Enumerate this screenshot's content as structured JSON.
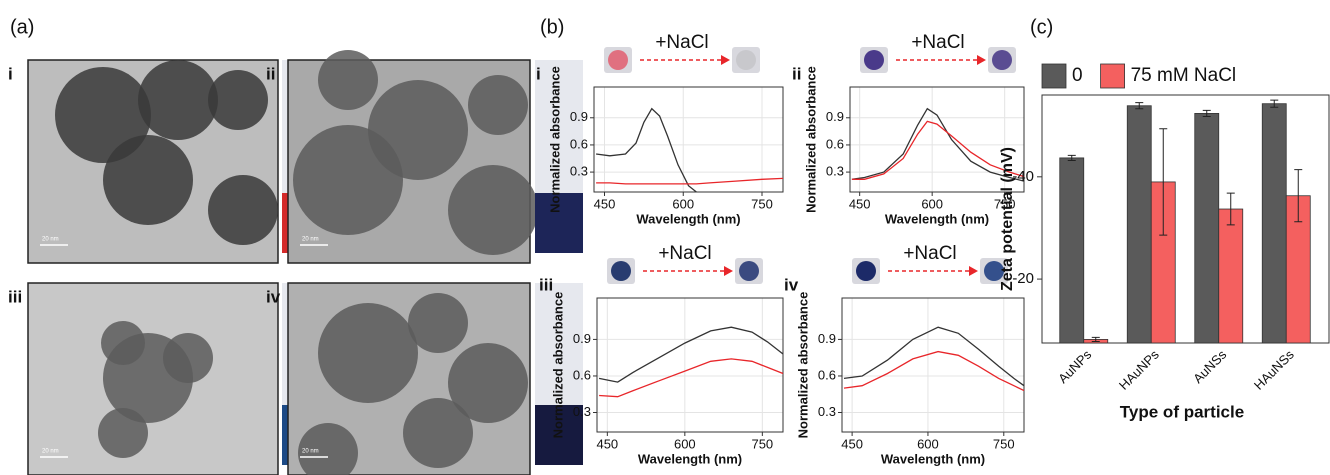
{
  "panel_labels": [
    "(a)",
    "(b)",
    "(c)"
  ],
  "tem_images": [
    {
      "label": "i",
      "scale_bar": "20 nm"
    },
    {
      "label": "ii",
      "scale_bar": "20 nm"
    },
    {
      "label": "iii",
      "scale_bar": "20 nm"
    },
    {
      "label": "iv",
      "scale_bar": "20 nm"
    }
  ],
  "chart_data": [
    {
      "type": "line",
      "label": "i",
      "annotation": "+NaCl",
      "x_label": "Wavelength (nm)",
      "y_label": "Normalized absorbance",
      "x": [
        434,
        460,
        490,
        510,
        525,
        540,
        555,
        570,
        590,
        610,
        625,
        650,
        700,
        750,
        790
      ],
      "series": [
        {
          "color": "#333333",
          "values": [
            0.5,
            0.48,
            0.5,
            0.62,
            0.85,
            1.0,
            0.92,
            0.7,
            0.38,
            0.15,
            0.08,
            null,
            null,
            null,
            null
          ]
        },
        {
          "color": "#e8262a",
          "values": [
            0.18,
            0.18,
            0.17,
            0.17,
            0.17,
            0.17,
            0.17,
            0.17,
            0.17,
            0.17,
            0.17,
            0.18,
            0.2,
            0.22,
            0.23
          ]
        }
      ],
      "xlim": [
        430,
        790
      ],
      "ylim": [
        0.08,
        1.24
      ],
      "xticks": [
        450,
        600,
        750
      ],
      "yticks": [
        0.3,
        0.6,
        0.9
      ],
      "grid": true
    },
    {
      "type": "line",
      "label": "ii",
      "annotation": "+NaCl",
      "x_label": "Wavelength (nm)",
      "y_label": "Normalized absorbance",
      "x": [
        434,
        460,
        500,
        540,
        570,
        590,
        610,
        640,
        680,
        720,
        760,
        790
      ],
      "series": [
        {
          "color": "#333333",
          "values": [
            0.22,
            0.24,
            0.3,
            0.5,
            0.82,
            1.0,
            0.93,
            0.66,
            0.42,
            0.3,
            0.24,
            0.2
          ]
        },
        {
          "color": "#e8262a",
          "values": [
            0.22,
            0.22,
            0.28,
            0.45,
            0.72,
            0.86,
            0.83,
            0.7,
            0.52,
            0.38,
            0.3,
            0.25
          ]
        }
      ],
      "xlim": [
        430,
        790
      ],
      "ylim": [
        0.08,
        1.24
      ],
      "xticks": [
        450,
        600,
        750
      ],
      "yticks": [
        0.3,
        0.6,
        0.9
      ],
      "grid": true
    },
    {
      "type": "line",
      "label": "iii",
      "annotation": "+NaCl",
      "x_label": "Wavelength (nm)",
      "y_label": "Normalized absorbance",
      "x": [
        434,
        470,
        500,
        550,
        600,
        650,
        690,
        730,
        760,
        790
      ],
      "series": [
        {
          "color": "#333333",
          "values": [
            0.58,
            0.55,
            0.63,
            0.75,
            0.87,
            0.97,
            1.0,
            0.96,
            0.88,
            0.78
          ]
        },
        {
          "color": "#e8262a",
          "values": [
            0.44,
            0.43,
            0.48,
            0.56,
            0.64,
            0.72,
            0.74,
            0.72,
            0.67,
            0.62
          ]
        }
      ],
      "xlim": [
        430,
        790
      ],
      "ylim": [
        0.14,
        1.24
      ],
      "xticks": [
        450,
        600,
        750
      ],
      "yticks": [
        0.3,
        0.6,
        0.9
      ],
      "grid": true
    },
    {
      "type": "line",
      "label": "iv",
      "annotation": "+NaCl",
      "x_label": "Wavelength (nm)",
      "y_label": "Normalized absorbance",
      "x": [
        434,
        470,
        520,
        570,
        620,
        660,
        700,
        740,
        770,
        790
      ],
      "series": [
        {
          "color": "#333333",
          "values": [
            0.58,
            0.6,
            0.73,
            0.9,
            1.0,
            0.95,
            0.82,
            0.68,
            0.58,
            0.52
          ]
        },
        {
          "color": "#e8262a",
          "values": [
            0.5,
            0.52,
            0.62,
            0.74,
            0.8,
            0.77,
            0.68,
            0.58,
            0.52,
            0.48
          ]
        }
      ],
      "xlim": [
        430,
        790
      ],
      "ylim": [
        0.14,
        1.24
      ],
      "xticks": [
        450,
        600,
        750
      ],
      "yticks": [
        0.3,
        0.6,
        0.9
      ],
      "grid": true
    },
    {
      "type": "bar",
      "x_label": "Type of particle",
      "y_label": "Zeta potential (mV)",
      "categories": [
        "AuNPs",
        "HAuNPs",
        "AuNSs",
        "HAuNSs"
      ],
      "series": [
        {
          "name": "0",
          "color": "#5a5a5a",
          "values": [
            -43.7,
            -53.9,
            -52.4,
            -54.3
          ],
          "errors": [
            0.5,
            0.6,
            0.6,
            0.7
          ]
        },
        {
          "name": "75 mM NaCl",
          "color": "#f4605f",
          "values": [
            -8.2,
            -39,
            -33.7,
            -36.3
          ],
          "errors": [
            0.4,
            10.4,
            3.1,
            5.1
          ]
        }
      ],
      "ylim": [
        -7.5,
        -56
      ],
      "yticks": [
        -40,
        -20
      ],
      "legend": "top"
    }
  ]
}
